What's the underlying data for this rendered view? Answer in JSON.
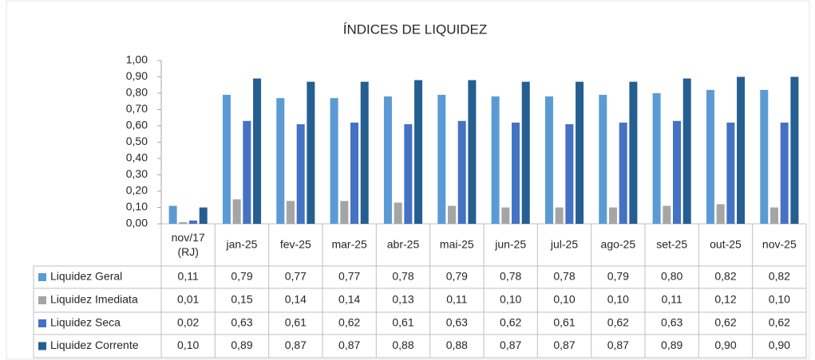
{
  "chart_data": {
    "type": "bar",
    "title": "ÍNDICES DE LIQUIDEZ",
    "categories": [
      "nov/17\n(RJ)",
      "jan-25",
      "fev-25",
      "mar-25",
      "abr-25",
      "mai-25",
      "jun-25",
      "jul-25",
      "ago-25",
      "set-25",
      "out-25",
      "nov-25"
    ],
    "ylim": [
      0,
      1
    ],
    "yticks": [
      {
        "value": 0,
        "label": "0,00"
      },
      {
        "value": 0.1,
        "label": "0,10"
      },
      {
        "value": 0.2,
        "label": "0,20"
      },
      {
        "value": 0.3,
        "label": "0,30"
      },
      {
        "value": 0.4,
        "label": "0,40"
      },
      {
        "value": 0.5,
        "label": "0,50"
      },
      {
        "value": 0.6,
        "label": "0,60"
      },
      {
        "value": 0.7,
        "label": "0,70"
      },
      {
        "value": 0.8,
        "label": "0,80"
      },
      {
        "value": 0.9,
        "label": "0,90"
      },
      {
        "value": 1,
        "label": "1,00"
      }
    ],
    "grid": false,
    "series": [
      {
        "name": "Liquidez Geral",
        "color": "#5b9bd5",
        "values": [
          0.11,
          0.79,
          0.77,
          0.77,
          0.78,
          0.79,
          0.78,
          0.78,
          0.79,
          0.8,
          0.82,
          0.82
        ],
        "value_labels": [
          "0,11",
          "0,79",
          "0,77",
          "0,77",
          "0,78",
          "0,79",
          "0,78",
          "0,78",
          "0,79",
          "0,80",
          "0,82",
          "0,82"
        ]
      },
      {
        "name": "Liquidez Imediata",
        "color": "#a5a5a5",
        "values": [
          0.01,
          0.15,
          0.14,
          0.14,
          0.13,
          0.11,
          0.1,
          0.1,
          0.1,
          0.11,
          0.12,
          0.1
        ],
        "value_labels": [
          "0,01",
          "0,15",
          "0,14",
          "0,14",
          "0,13",
          "0,11",
          "0,10",
          "0,10",
          "0,10",
          "0,11",
          "0,12",
          "0,10"
        ]
      },
      {
        "name": "Liquidez Seca",
        "color": "#4472c4",
        "values": [
          0.02,
          0.63,
          0.61,
          0.62,
          0.61,
          0.63,
          0.62,
          0.61,
          0.62,
          0.63,
          0.62,
          0.62
        ],
        "value_labels": [
          "0,02",
          "0,63",
          "0,61",
          "0,62",
          "0,61",
          "0,63",
          "0,62",
          "0,61",
          "0,62",
          "0,63",
          "0,62",
          "0,62"
        ]
      },
      {
        "name": "Liquidez Corrente",
        "color": "#255e91",
        "values": [
          0.1,
          0.89,
          0.87,
          0.87,
          0.88,
          0.88,
          0.87,
          0.87,
          0.87,
          0.89,
          0.9,
          0.9
        ],
        "value_labels": [
          "0,10",
          "0,89",
          "0,87",
          "0,87",
          "0,88",
          "0,88",
          "0,87",
          "0,87",
          "0,87",
          "0,89",
          "0,90",
          "0,90"
        ]
      }
    ]
  }
}
